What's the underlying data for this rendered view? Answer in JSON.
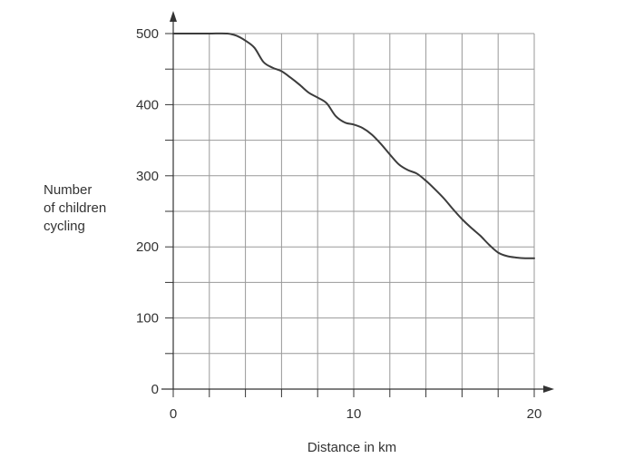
{
  "chart_data": {
    "type": "line",
    "title": "",
    "xlabel": "Distance in km",
    "ylabel_lines": [
      "Number",
      "of children",
      "cycling"
    ],
    "xlim": [
      0,
      20
    ],
    "ylim": [
      0,
      500
    ],
    "x_ticks": [
      0,
      10,
      20
    ],
    "y_ticks": [
      0,
      100,
      200,
      300,
      400,
      500
    ],
    "x_grid_step": 2,
    "y_grid_step": 50,
    "grid": true,
    "series": [
      {
        "x": [
          0,
          1,
          2,
          3,
          3.5,
          4,
          4.5,
          5,
          5.5,
          6,
          6.5,
          7,
          7.5,
          8,
          8.5,
          9,
          9.5,
          10,
          10.5,
          11,
          11.5,
          12,
          12.5,
          13,
          13.5,
          14,
          14.5,
          15,
          15.5,
          16,
          16.5,
          17,
          17.5,
          18,
          18.5,
          19,
          19.5,
          20
        ],
        "y": [
          500,
          500,
          500,
          500,
          497,
          490,
          480,
          460,
          452,
          447,
          438,
          428,
          417,
          410,
          402,
          384,
          375,
          372,
          367,
          358,
          345,
          330,
          316,
          308,
          303,
          293,
          281,
          268,
          253,
          239,
          227,
          216,
          203,
          192,
          187,
          185,
          184,
          184
        ]
      }
    ],
    "colors": {
      "line": "#3c3c3c",
      "grid": "#999999",
      "axis": "#333333",
      "text": "#333333"
    }
  }
}
